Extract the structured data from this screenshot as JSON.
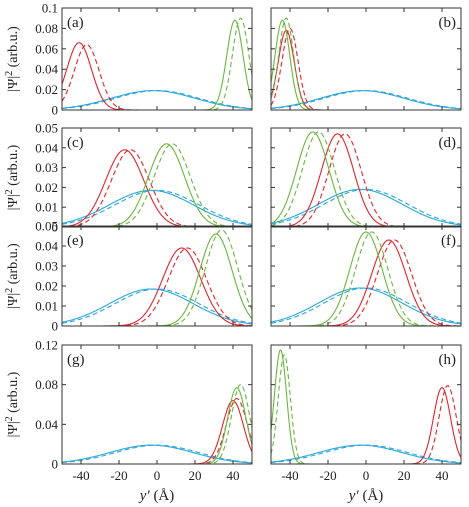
{
  "chart_data": {
    "type": "line",
    "layout": "4x2 grid of panels",
    "x_axis": {
      "label_main": "y′",
      "label_unit": " (Å)",
      "range": [
        -50,
        50
      ],
      "ticks": [
        -40,
        -20,
        0,
        20,
        40
      ]
    },
    "y_axis_label": {
      "main": "|Ψ|",
      "sup": "2",
      "unit": " (arb.u.)"
    },
    "series_styles": [
      {
        "key": "blue",
        "color": "#2aa7dd",
        "description": "solid and dashed"
      },
      {
        "key": "red",
        "color": "#e3242b",
        "description": "solid and dashed"
      },
      {
        "key": "green",
        "color": "#6ab73e",
        "description": "solid and dashed"
      }
    ],
    "rows": [
      {
        "ymax": 0.1,
        "ticks": [
          0,
          0.02,
          0.04,
          0.06,
          0.08,
          0.1
        ],
        "tick_labels": [
          "0",
          "0.02",
          "0.04",
          "0.06",
          "0.08",
          "0.1"
        ]
      },
      {
        "ymax": 0.05,
        "ticks": [
          0,
          0.01,
          0.02,
          0.03,
          0.04,
          0.05
        ],
        "tick_labels": [
          "0",
          "0.01",
          "0.02",
          "0.03",
          "0.04",
          "0.05"
        ]
      },
      {
        "ymax": 0.05,
        "ticks": [
          0,
          0.01,
          0.02,
          0.03,
          0.04,
          0.05
        ],
        "tick_labels": [
          "0",
          "0.01",
          "0.02",
          "0.03",
          "0.04",
          "0.05"
        ]
      },
      {
        "ymax": 0.12,
        "ticks": [
          0,
          0.04,
          0.08,
          0.12
        ],
        "tick_labels": [
          "0",
          "0.04",
          "0.08",
          "0.12"
        ]
      }
    ],
    "panels": [
      {
        "label": "(a)",
        "row": 0,
        "col": 0,
        "curves": [
          {
            "color": "blue",
            "dash": false,
            "peak": 0.019,
            "center": -2,
            "sigma": 22
          },
          {
            "color": "blue",
            "dash": true,
            "peak": 0.019,
            "center": 0,
            "sigma": 22
          },
          {
            "color": "red",
            "dash": false,
            "peak": 0.066,
            "center": -41,
            "sigma": 6.5
          },
          {
            "color": "red",
            "dash": true,
            "peak": 0.064,
            "center": -37,
            "sigma": 6.5
          },
          {
            "color": "green",
            "dash": false,
            "peak": 0.088,
            "center": 41,
            "sigma": 4.3
          },
          {
            "color": "green",
            "dash": true,
            "peak": 0.09,
            "center": 44,
            "sigma": 4.3
          }
        ]
      },
      {
        "label": "(b)",
        "row": 0,
        "col": 1,
        "curves": [
          {
            "color": "blue",
            "dash": false,
            "peak": 0.019,
            "center": -2,
            "sigma": 22
          },
          {
            "color": "blue",
            "dash": true,
            "peak": 0.019,
            "center": 0,
            "sigma": 22
          },
          {
            "color": "red",
            "dash": false,
            "peak": 0.078,
            "center": -42,
            "sigma": 4.2
          },
          {
            "color": "red",
            "dash": true,
            "peak": 0.08,
            "center": -40,
            "sigma": 4.2
          },
          {
            "color": "green",
            "dash": false,
            "peak": 0.088,
            "center": -44,
            "sigma": 3.9
          },
          {
            "color": "green",
            "dash": true,
            "peak": 0.09,
            "center": -42,
            "sigma": 3.9
          }
        ]
      },
      {
        "label": "(c)",
        "row": 1,
        "col": 0,
        "curves": [
          {
            "color": "blue",
            "dash": false,
            "peak": 0.0185,
            "center": -3,
            "sigma": 22
          },
          {
            "color": "blue",
            "dash": true,
            "peak": 0.0185,
            "center": 0,
            "sigma": 22
          },
          {
            "color": "red",
            "dash": false,
            "peak": 0.039,
            "center": -17,
            "sigma": 10
          },
          {
            "color": "red",
            "dash": true,
            "peak": 0.039,
            "center": -14,
            "sigma": 10
          },
          {
            "color": "green",
            "dash": false,
            "peak": 0.042,
            "center": 5,
            "sigma": 9.5
          },
          {
            "color": "green",
            "dash": true,
            "peak": 0.042,
            "center": 8,
            "sigma": 9.5
          }
        ]
      },
      {
        "label": "(d)",
        "row": 1,
        "col": 1,
        "curves": [
          {
            "color": "blue",
            "dash": false,
            "peak": 0.019,
            "center": -3,
            "sigma": 22
          },
          {
            "color": "blue",
            "dash": true,
            "peak": 0.019,
            "center": 0,
            "sigma": 22
          },
          {
            "color": "red",
            "dash": false,
            "peak": 0.047,
            "center": -15,
            "sigma": 8.5
          },
          {
            "color": "red",
            "dash": true,
            "peak": 0.047,
            "center": -11,
            "sigma": 8.5
          },
          {
            "color": "green",
            "dash": false,
            "peak": 0.048,
            "center": -28,
            "sigma": 8.5
          },
          {
            "color": "green",
            "dash": true,
            "peak": 0.048,
            "center": -25,
            "sigma": 8.5
          }
        ]
      },
      {
        "label": "(e)",
        "row": 2,
        "col": 0,
        "curves": [
          {
            "color": "blue",
            "dash": false,
            "peak": 0.0185,
            "center": -3,
            "sigma": 22
          },
          {
            "color": "blue",
            "dash": true,
            "peak": 0.0185,
            "center": 0,
            "sigma": 22
          },
          {
            "color": "red",
            "dash": false,
            "peak": 0.039,
            "center": 13,
            "sigma": 10
          },
          {
            "color": "red",
            "dash": true,
            "peak": 0.039,
            "center": 16,
            "sigma": 10
          },
          {
            "color": "green",
            "dash": false,
            "peak": 0.046,
            "center": 31,
            "sigma": 8.5
          },
          {
            "color": "green",
            "dash": true,
            "peak": 0.048,
            "center": 34,
            "sigma": 8.5
          }
        ]
      },
      {
        "label": "(f)",
        "row": 2,
        "col": 1,
        "curves": [
          {
            "color": "blue",
            "dash": false,
            "peak": 0.019,
            "center": -3,
            "sigma": 22
          },
          {
            "color": "blue",
            "dash": true,
            "peak": 0.019,
            "center": 0,
            "sigma": 22
          },
          {
            "color": "red",
            "dash": false,
            "peak": 0.043,
            "center": 12,
            "sigma": 9
          },
          {
            "color": "red",
            "dash": true,
            "peak": 0.043,
            "center": 15,
            "sigma": 9
          },
          {
            "color": "green",
            "dash": false,
            "peak": 0.047,
            "center": 0,
            "sigma": 8.5
          },
          {
            "color": "green",
            "dash": true,
            "peak": 0.047,
            "center": 3,
            "sigma": 8.5
          }
        ]
      },
      {
        "label": "(g)",
        "row": 3,
        "col": 0,
        "curves": [
          {
            "color": "blue",
            "dash": false,
            "peak": 0.019,
            "center": -3,
            "sigma": 22
          },
          {
            "color": "blue",
            "dash": true,
            "peak": 0.019,
            "center": 0,
            "sigma": 22
          },
          {
            "color": "red",
            "dash": false,
            "peak": 0.064,
            "center": 40,
            "sigma": 5.5
          },
          {
            "color": "red",
            "dash": true,
            "peak": 0.066,
            "center": 42,
            "sigma": 5.5
          },
          {
            "color": "green",
            "dash": false,
            "peak": 0.077,
            "center": 42,
            "sigma": 4.8
          },
          {
            "color": "green",
            "dash": true,
            "peak": 0.08,
            "center": 44,
            "sigma": 4.8
          }
        ]
      },
      {
        "label": "(h)",
        "row": 3,
        "col": 1,
        "curves": [
          {
            "color": "blue",
            "dash": false,
            "peak": 0.019,
            "center": -3,
            "sigma": 22
          },
          {
            "color": "blue",
            "dash": true,
            "peak": 0.019,
            "center": 0,
            "sigma": 22
          },
          {
            "color": "red",
            "dash": false,
            "peak": 0.077,
            "center": 40,
            "sigma": 4.5
          },
          {
            "color": "red",
            "dash": true,
            "peak": 0.079,
            "center": 43,
            "sigma": 4.5
          },
          {
            "color": "green",
            "dash": false,
            "peak": 0.115,
            "center": -45,
            "sigma": 3.2
          },
          {
            "color": "green",
            "dash": true,
            "peak": 0.11,
            "center": -43,
            "sigma": 3.2
          }
        ]
      }
    ]
  }
}
